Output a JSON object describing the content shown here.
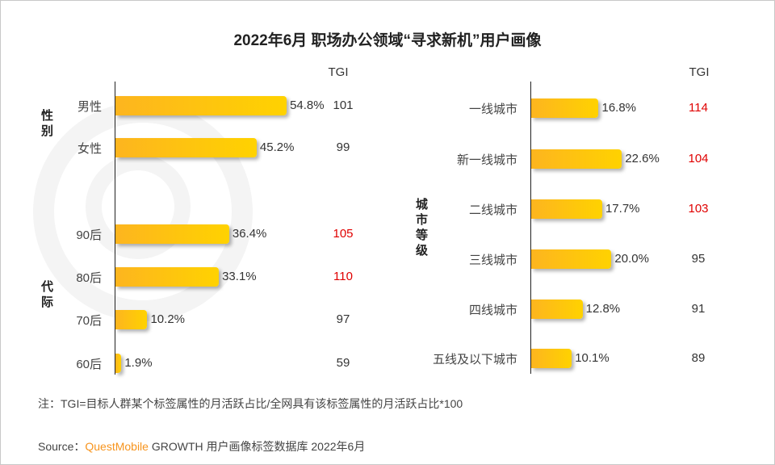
{
  "title": "2022年6月 职场办公领域“寻求新机”用户画像",
  "watermark": "QUEST MOBILE",
  "colors": {
    "bar_start": "#fdb51f",
    "bar_end": "#ffd200",
    "tgi_high": "#e00000",
    "tgi_normal": "#333333"
  },
  "chart_data": [
    {
      "type": "bar",
      "orientation": "horizontal",
      "tgi_header": "TGI",
      "groups": [
        {
          "label": "性别",
          "categories": [
            "男性",
            "女性"
          ]
        },
        {
          "label": "代际",
          "categories": [
            "90后",
            "80后",
            "70后",
            "60后"
          ]
        }
      ],
      "categories": [
        "男性",
        "女性",
        "90后",
        "80后",
        "70后",
        "60后"
      ],
      "values": [
        54.8,
        45.2,
        36.4,
        33.1,
        10.2,
        1.9
      ],
      "value_labels": [
        "54.8%",
        "45.2%",
        "36.4%",
        "33.1%",
        "10.2%",
        "1.9%"
      ],
      "tgi": [
        "101",
        "99",
        "105",
        "110",
        "97",
        "59"
      ],
      "tgi_highlight": [
        false,
        false,
        true,
        true,
        false,
        false
      ]
    },
    {
      "type": "bar",
      "orientation": "horizontal",
      "tgi_header": "TGI",
      "groups": [
        {
          "label": "城市等级",
          "categories": [
            "一线城市",
            "新一线城市",
            "二线城市",
            "三线城市",
            "四线城市",
            "五线及以下城市"
          ]
        }
      ],
      "categories": [
        "一线城市",
        "新一线城市",
        "二线城市",
        "三线城市",
        "四线城市",
        "五线及以下城市"
      ],
      "values": [
        16.8,
        22.6,
        17.7,
        20.0,
        12.8,
        10.1
      ],
      "value_labels": [
        "16.8%",
        "22.6%",
        "17.7%",
        "20.0%",
        "12.8%",
        "10.1%"
      ],
      "tgi": [
        "114",
        "104",
        "103",
        "95",
        "91",
        "89"
      ],
      "tgi_highlight": [
        true,
        true,
        true,
        false,
        false,
        false
      ]
    }
  ],
  "note": "注：TGI=目标人群某个标签属性的月活跃占比/全网具有该标签属性的月活跃占比*100",
  "source": {
    "prefix": "Source：",
    "brand": "QuestMobile",
    "rest": " GROWTH 用户画像标签数据库 2022年6月"
  }
}
